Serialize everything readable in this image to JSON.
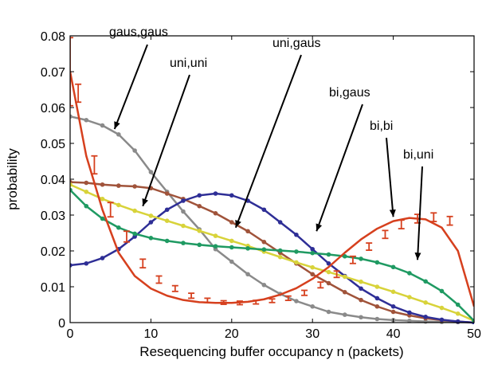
{
  "chart_data": {
    "type": "line",
    "xlabel": "Resequencing buffer occupancy n (packets)",
    "ylabel": "probability",
    "xlim": [
      0,
      50
    ],
    "ylim": [
      0,
      0.08
    ],
    "xticks": [
      "0",
      "10",
      "20",
      "30",
      "40",
      "50"
    ],
    "yticks": [
      "0",
      "0.01",
      "0.02",
      "0.03",
      "0.04",
      "0.05",
      "0.06",
      "0.07",
      "0.08"
    ],
    "grid": false,
    "colors": {
      "gray": "#8a8a8a",
      "red": "#d6401e",
      "blue": "#2e2e96",
      "brown": "#a0533a",
      "yellow": "#d8d33a",
      "green": "#1f9a62"
    },
    "series": [
      {
        "color": "gray",
        "x": [
          0,
          2,
          4,
          6,
          8,
          10,
          12,
          14,
          16,
          18,
          20,
          22,
          24,
          26,
          28,
          30,
          32,
          34,
          36,
          38,
          40,
          42,
          44,
          46,
          48,
          50
        ],
        "y": [
          0.0575,
          0.0565,
          0.055,
          0.0525,
          0.048,
          0.042,
          0.0365,
          0.031,
          0.026,
          0.0205,
          0.017,
          0.0135,
          0.0105,
          0.008,
          0.006,
          0.0045,
          0.003,
          0.0022,
          0.0015,
          0.001,
          0.0007,
          0.0005,
          0.0003,
          0.0002,
          0.0001,
          0.0
        ]
      },
      {
        "color": "brown",
        "x": [
          0,
          2,
          4,
          6,
          8,
          10,
          12,
          14,
          16,
          18,
          20,
          22,
          24,
          26,
          28,
          30,
          32,
          34,
          36,
          38,
          40,
          42,
          44,
          46,
          48,
          50
        ],
        "y": [
          0.0392,
          0.039,
          0.0385,
          0.0382,
          0.038,
          0.0375,
          0.036,
          0.0345,
          0.0325,
          0.0305,
          0.028,
          0.0255,
          0.0225,
          0.0195,
          0.0165,
          0.0135,
          0.011,
          0.0085,
          0.0063,
          0.0045,
          0.003,
          0.002,
          0.0012,
          0.0007,
          0.0003,
          0.0
        ]
      },
      {
        "color": "blue",
        "x": [
          0,
          2,
          4,
          6,
          8,
          10,
          12,
          14,
          16,
          18,
          20,
          22,
          24,
          26,
          28,
          30,
          32,
          34,
          36,
          38,
          40,
          42,
          44,
          46,
          48,
          50
        ],
        "y": [
          0.016,
          0.0165,
          0.018,
          0.0205,
          0.024,
          0.028,
          0.0315,
          0.034,
          0.0355,
          0.036,
          0.0355,
          0.034,
          0.0315,
          0.028,
          0.0245,
          0.0205,
          0.0165,
          0.013,
          0.0095,
          0.0068,
          0.0045,
          0.0028,
          0.0016,
          0.0008,
          0.0003,
          0.0
        ]
      },
      {
        "color": "yellow",
        "x": [
          0,
          2,
          4,
          6,
          8,
          10,
          12,
          14,
          16,
          18,
          20,
          22,
          24,
          26,
          28,
          30,
          32,
          34,
          36,
          38,
          40,
          42,
          44,
          46,
          48,
          50
        ],
        "y": [
          0.0385,
          0.0365,
          0.0345,
          0.0328,
          0.0312,
          0.0298,
          0.0284,
          0.027,
          0.0256,
          0.0242,
          0.0228,
          0.0214,
          0.0198,
          0.0183,
          0.0168,
          0.0154,
          0.0141,
          0.0128,
          0.0114,
          0.01,
          0.0086,
          0.0071,
          0.0056,
          0.0041,
          0.0025,
          0.0005
        ]
      },
      {
        "color": "green",
        "x": [
          0,
          2,
          4,
          6,
          8,
          10,
          12,
          14,
          16,
          18,
          20,
          22,
          24,
          26,
          28,
          30,
          32,
          34,
          36,
          38,
          40,
          42,
          44,
          46,
          48,
          50
        ],
        "y": [
          0.037,
          0.0325,
          0.029,
          0.0265,
          0.0248,
          0.0236,
          0.0228,
          0.0222,
          0.0217,
          0.0213,
          0.021,
          0.0207,
          0.0204,
          0.0201,
          0.0198,
          0.0194,
          0.019,
          0.0185,
          0.0178,
          0.0168,
          0.0155,
          0.0138,
          0.0115,
          0.0088,
          0.005,
          0.0005
        ]
      },
      {
        "color": "red",
        "x": [
          0,
          2,
          4,
          6,
          8,
          10,
          12,
          14,
          16,
          18,
          20,
          22,
          24,
          26,
          28,
          30,
          32,
          34,
          36,
          38,
          40,
          42,
          44,
          46,
          48,
          50
        ],
        "y": [
          0.07,
          0.0465,
          0.0315,
          0.0195,
          0.013,
          0.0095,
          0.0075,
          0.0063,
          0.0057,
          0.0055,
          0.0055,
          0.0058,
          0.0065,
          0.0078,
          0.0096,
          0.0122,
          0.0155,
          0.0195,
          0.0232,
          0.0262,
          0.0283,
          0.0292,
          0.0288,
          0.0265,
          0.02,
          0.0045
        ],
        "errorbars": {
          "x": [
            0,
            1,
            3,
            5,
            7,
            9,
            11,
            13,
            15,
            17,
            19,
            21,
            23,
            25,
            27,
            29,
            31,
            33,
            35,
            37,
            39,
            41,
            43,
            45,
            47
          ],
          "y": [
            0.07,
            0.064,
            0.044,
            0.0315,
            0.024,
            0.0165,
            0.012,
            0.0095,
            0.0075,
            0.0062,
            0.0056,
            0.0055,
            0.0057,
            0.0061,
            0.0068,
            0.0083,
            0.0105,
            0.0135,
            0.0175,
            0.0212,
            0.0246,
            0.0274,
            0.029,
            0.0294,
            0.0284
          ],
          "err": [
            0.0095,
            0.0025,
            0.0025,
            0.002,
            0.0015,
            0.0012,
            0.001,
            0.0008,
            0.0007,
            0.0006,
            0.0005,
            0.0005,
            0.0005,
            0.0005,
            0.0006,
            0.0007,
            0.0008,
            0.0009,
            0.001,
            0.001,
            0.0011,
            0.0012,
            0.0012,
            0.0012,
            0.0012
          ]
        }
      }
    ],
    "annotations": [
      {
        "text": "gaus,gaus",
        "target": [
          5.5,
          0.054
        ]
      },
      {
        "text": "uni,uni",
        "target": [
          9.0,
          0.0325
        ]
      },
      {
        "text": "uni,gaus",
        "target": [
          20.5,
          0.0265
        ]
      },
      {
        "text": "bi,gaus",
        "target": [
          30.5,
          0.0255
        ]
      },
      {
        "text": "bi,bi",
        "target": [
          40.0,
          0.0295
        ]
      },
      {
        "text": "bi,uni",
        "target": [
          43.0,
          0.0175
        ]
      }
    ]
  }
}
